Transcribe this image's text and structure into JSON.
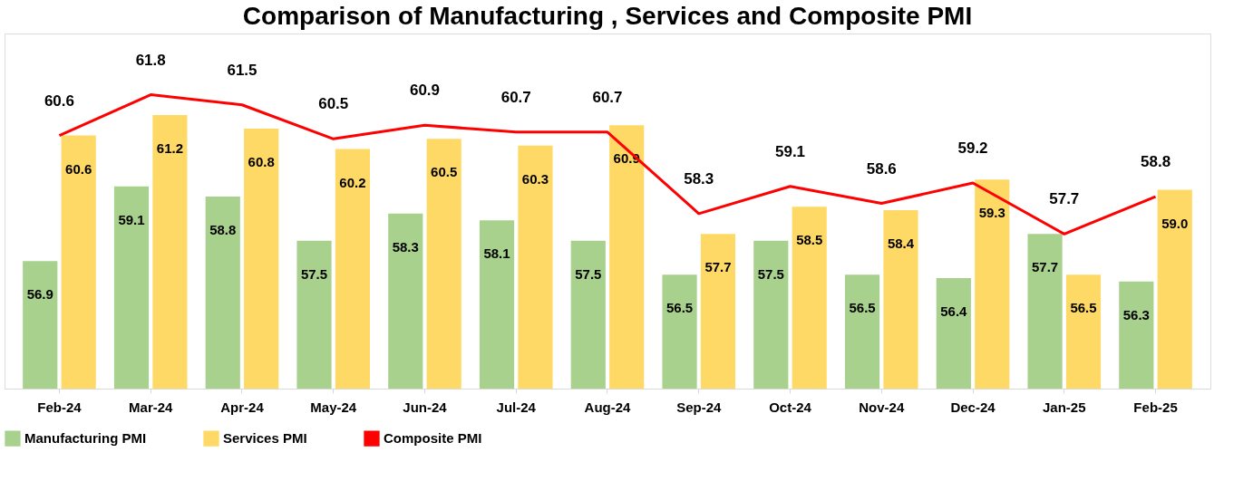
{
  "chart_data": {
    "type": "bar",
    "title": "Comparison of Manufacturing , Services and Composite PMI",
    "categories": [
      "Feb-24",
      "Mar-24",
      "Apr-24",
      "May-24",
      "Jun-24",
      "Jul-24",
      "Aug-24",
      "Sep-24",
      "Oct-24",
      "Nov-24",
      "Dec-24",
      "Jan-25",
      "Feb-25"
    ],
    "series": [
      {
        "name": "Manufacturing PMI",
        "color": "#a9d18e",
        "values": [
          56.9,
          59.1,
          58.8,
          57.5,
          58.3,
          58.1,
          57.5,
          56.5,
          57.5,
          56.5,
          56.4,
          57.7,
          56.3
        ],
        "value_labels": [
          "56.9",
          "59.1",
          "58.8",
          "57.5",
          "58.3",
          "58.1",
          "57.5",
          "56.5",
          "57.5",
          "56.5",
          "56.4",
          "57.7",
          "56.3"
        ]
      },
      {
        "name": "Services PMI",
        "color": "#ffd966",
        "values": [
          60.6,
          61.2,
          60.8,
          60.2,
          60.5,
          60.3,
          60.9,
          57.7,
          58.5,
          58.4,
          59.3,
          56.5,
          59.0
        ],
        "value_labels": [
          "60.6",
          "61.2",
          "60.8",
          "60.2",
          "60.5",
          "60.3",
          "60.9",
          "57.7",
          "58.5",
          "58.4",
          "59.3",
          "56.5",
          "59.0"
        ]
      },
      {
        "name": "Composite PMI",
        "type": "line",
        "color": "#ff0000",
        "values": [
          60.6,
          61.8,
          61.5,
          60.5,
          60.9,
          60.7,
          60.7,
          58.3,
          59.1,
          58.6,
          59.2,
          57.7,
          58.8
        ],
        "value_labels": [
          "60.6",
          "61.8",
          "61.5",
          "60.5",
          "60.9",
          "60.7",
          "60.7",
          "58.3",
          "59.1",
          "58.6",
          "59.2",
          "57.7",
          "58.8"
        ]
      }
    ],
    "ylim": [
      53.15,
      63.6
    ],
    "tick_labels": "x",
    "grid": false,
    "legend": "bottom",
    "line_style": "solid",
    "marker": "none"
  }
}
